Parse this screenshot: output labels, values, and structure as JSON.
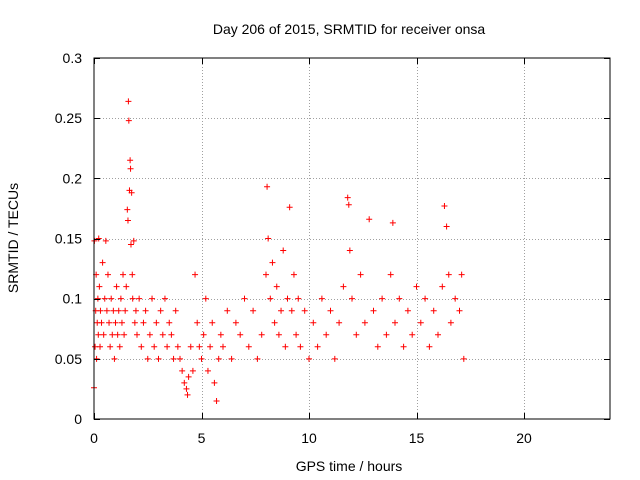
{
  "chart_data": {
    "type": "scatter",
    "title": "Day 206 of 2015, SRMTID for receiver onsa",
    "xlabel": "GPS time / hours",
    "ylabel": "SRMTID / TECUs",
    "xlim": [
      0,
      24
    ],
    "ylim": [
      0,
      0.3
    ],
    "xticks": [
      0,
      5,
      10,
      15,
      20
    ],
    "xtick_labels": [
      "0",
      "5",
      "10",
      "15",
      "20"
    ],
    "yticks": [
      0,
      0.05,
      0.1,
      0.15,
      0.2,
      0.25,
      0.3
    ],
    "ytick_labels": [
      "0",
      "0.05",
      "0.1",
      "0.15",
      "0.2",
      "0.25",
      "0.3"
    ],
    "grid": true,
    "marker": "+",
    "color": "#ff0000",
    "series": [
      {
        "name": "SRMTID",
        "points": [
          [
            0.0,
            0.026
          ],
          [
            0.02,
            0.148
          ],
          [
            0.05,
            0.06
          ],
          [
            0.08,
            0.09
          ],
          [
            0.1,
            0.12
          ],
          [
            0.12,
            0.05
          ],
          [
            0.15,
            0.08
          ],
          [
            0.18,
            0.1
          ],
          [
            0.2,
            0.07
          ],
          [
            0.22,
            0.15
          ],
          [
            0.25,
            0.11
          ],
          [
            0.28,
            0.06
          ],
          [
            0.3,
            0.09
          ],
          [
            0.35,
            0.08
          ],
          [
            0.4,
            0.13
          ],
          [
            0.45,
            0.07
          ],
          [
            0.5,
            0.1
          ],
          [
            0.55,
            0.148
          ],
          [
            0.6,
            0.09
          ],
          [
            0.65,
            0.12
          ],
          [
            0.7,
            0.08
          ],
          [
            0.75,
            0.06
          ],
          [
            0.8,
            0.1
          ],
          [
            0.85,
            0.07
          ],
          [
            0.9,
            0.09
          ],
          [
            0.95,
            0.05
          ],
          [
            1.0,
            0.08
          ],
          [
            1.05,
            0.11
          ],
          [
            1.1,
            0.07
          ],
          [
            1.15,
            0.09
          ],
          [
            1.2,
            0.06
          ],
          [
            1.25,
            0.1
          ],
          [
            1.3,
            0.08
          ],
          [
            1.35,
            0.12
          ],
          [
            1.4,
            0.07
          ],
          [
            1.45,
            0.09
          ],
          [
            1.5,
            0.11
          ],
          [
            1.55,
            0.174
          ],
          [
            1.58,
            0.165
          ],
          [
            1.6,
            0.264
          ],
          [
            1.62,
            0.248
          ],
          [
            1.65,
            0.19
          ],
          [
            1.68,
            0.215
          ],
          [
            1.7,
            0.208
          ],
          [
            1.72,
            0.145
          ],
          [
            1.75,
            0.188
          ],
          [
            1.78,
            0.12
          ],
          [
            1.8,
            0.1
          ],
          [
            1.85,
            0.148
          ],
          [
            1.9,
            0.08
          ],
          [
            1.95,
            0.09
          ],
          [
            2.0,
            0.07
          ],
          [
            2.1,
            0.1
          ],
          [
            2.2,
            0.06
          ],
          [
            2.3,
            0.08
          ],
          [
            2.4,
            0.09
          ],
          [
            2.5,
            0.05
          ],
          [
            2.6,
            0.07
          ],
          [
            2.7,
            0.1
          ],
          [
            2.8,
            0.06
          ],
          [
            2.9,
            0.08
          ],
          [
            3.0,
            0.05
          ],
          [
            3.1,
            0.09
          ],
          [
            3.2,
            0.07
          ],
          [
            3.3,
            0.1
          ],
          [
            3.4,
            0.06
          ],
          [
            3.5,
            0.08
          ],
          [
            3.6,
            0.07
          ],
          [
            3.7,
            0.05
          ],
          [
            3.8,
            0.09
          ],
          [
            3.9,
            0.06
          ],
          [
            4.0,
            0.05
          ],
          [
            4.1,
            0.04
          ],
          [
            4.2,
            0.03
          ],
          [
            4.3,
            0.025
          ],
          [
            4.35,
            0.02
          ],
          [
            4.4,
            0.035
          ],
          [
            4.5,
            0.06
          ],
          [
            4.6,
            0.04
          ],
          [
            4.7,
            0.12
          ],
          [
            4.8,
            0.08
          ],
          [
            4.9,
            0.06
          ],
          [
            5.0,
            0.05
          ],
          [
            5.1,
            0.07
          ],
          [
            5.2,
            0.1
          ],
          [
            5.3,
            0.04
          ],
          [
            5.4,
            0.06
          ],
          [
            5.5,
            0.08
          ],
          [
            5.6,
            0.03
          ],
          [
            5.7,
            0.015
          ],
          [
            5.8,
            0.05
          ],
          [
            5.9,
            0.07
          ],
          [
            6.0,
            0.06
          ],
          [
            6.2,
            0.09
          ],
          [
            6.4,
            0.05
          ],
          [
            6.6,
            0.08
          ],
          [
            6.8,
            0.07
          ],
          [
            7.0,
            0.1
          ],
          [
            7.2,
            0.06
          ],
          [
            7.4,
            0.09
          ],
          [
            7.6,
            0.05
          ],
          [
            7.8,
            0.07
          ],
          [
            8.0,
            0.12
          ],
          [
            8.05,
            0.193
          ],
          [
            8.1,
            0.15
          ],
          [
            8.2,
            0.1
          ],
          [
            8.3,
            0.13
          ],
          [
            8.4,
            0.08
          ],
          [
            8.5,
            0.11
          ],
          [
            8.6,
            0.07
          ],
          [
            8.7,
            0.09
          ],
          [
            8.8,
            0.14
          ],
          [
            8.9,
            0.06
          ],
          [
            9.0,
            0.1
          ],
          [
            9.1,
            0.176
          ],
          [
            9.2,
            0.09
          ],
          [
            9.3,
            0.12
          ],
          [
            9.4,
            0.07
          ],
          [
            9.5,
            0.1
          ],
          [
            9.6,
            0.06
          ],
          [
            9.8,
            0.09
          ],
          [
            10.0,
            0.05
          ],
          [
            10.2,
            0.08
          ],
          [
            10.4,
            0.06
          ],
          [
            10.6,
            0.1
          ],
          [
            10.8,
            0.07
          ],
          [
            11.0,
            0.09
          ],
          [
            11.2,
            0.05
          ],
          [
            11.4,
            0.08
          ],
          [
            11.6,
            0.11
          ],
          [
            11.8,
            0.184
          ],
          [
            11.85,
            0.178
          ],
          [
            11.9,
            0.14
          ],
          [
            12.0,
            0.1
          ],
          [
            12.2,
            0.07
          ],
          [
            12.4,
            0.12
          ],
          [
            12.6,
            0.08
          ],
          [
            12.8,
            0.166
          ],
          [
            13.0,
            0.09
          ],
          [
            13.2,
            0.06
          ],
          [
            13.4,
            0.1
          ],
          [
            13.6,
            0.07
          ],
          [
            13.8,
            0.12
          ],
          [
            13.9,
            0.163
          ],
          [
            14.0,
            0.08
          ],
          [
            14.2,
            0.1
          ],
          [
            14.4,
            0.06
          ],
          [
            14.6,
            0.09
          ],
          [
            14.8,
            0.07
          ],
          [
            15.0,
            0.11
          ],
          [
            15.2,
            0.08
          ],
          [
            15.4,
            0.1
          ],
          [
            15.6,
            0.06
          ],
          [
            15.8,
            0.09
          ],
          [
            16.0,
            0.07
          ],
          [
            16.2,
            0.11
          ],
          [
            16.3,
            0.177
          ],
          [
            16.4,
            0.16
          ],
          [
            16.5,
            0.12
          ],
          [
            16.6,
            0.08
          ],
          [
            16.8,
            0.1
          ],
          [
            17.0,
            0.09
          ],
          [
            17.1,
            0.12
          ],
          [
            17.2,
            0.05
          ]
        ]
      }
    ]
  }
}
